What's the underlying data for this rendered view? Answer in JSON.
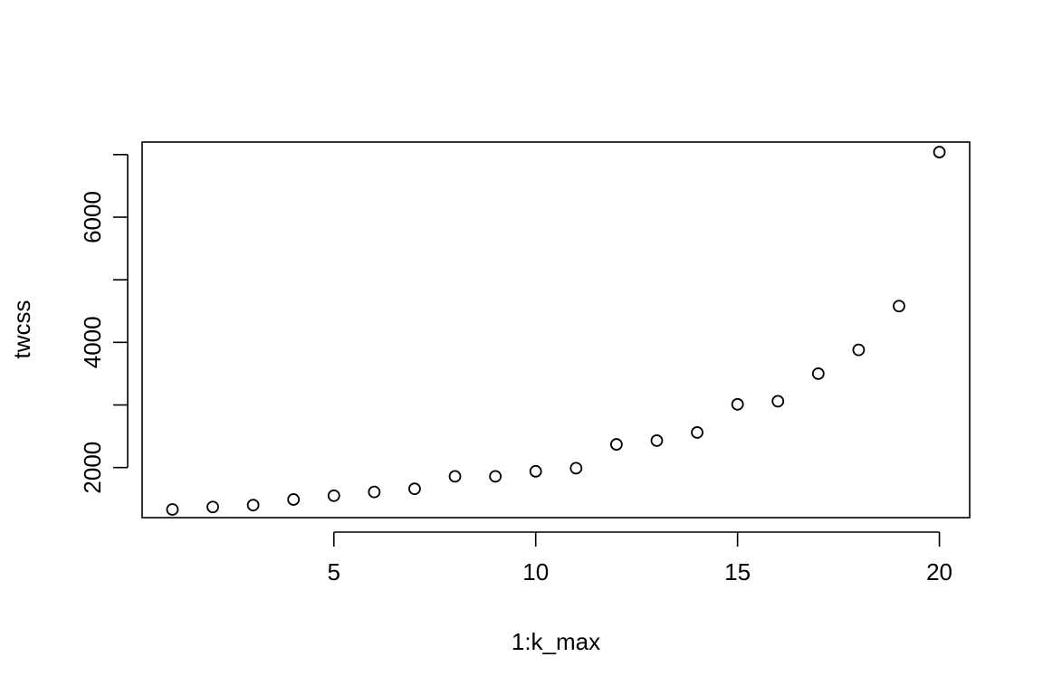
{
  "chart_data": {
    "type": "scatter",
    "title": "",
    "xlabel": "1:k_max",
    "ylabel": "twcss",
    "xlim": [
      0.25,
      20.75
    ],
    "ylim": [
      1200,
      7200
    ],
    "x_ticks": [
      5,
      10,
      15,
      20
    ],
    "y_ticks": [
      2000,
      4000,
      6000
    ],
    "y_ticks_minor": [
      3000,
      5000,
      7000
    ],
    "grid": false,
    "marker": "open-circle",
    "x": [
      1,
      2,
      3,
      4,
      5,
      6,
      7,
      8,
      9,
      10,
      11,
      12,
      13,
      14,
      15,
      16,
      17,
      18,
      19,
      20
    ],
    "y": [
      1330,
      1370,
      1400,
      1490,
      1550,
      1610,
      1660,
      1860,
      1860,
      1940,
      1990,
      2370,
      2430,
      2560,
      3010,
      3060,
      3500,
      3880,
      4580,
      7040
    ]
  }
}
